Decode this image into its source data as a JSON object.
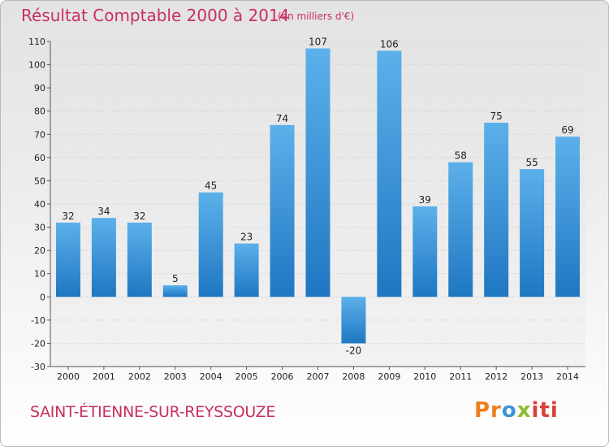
{
  "title": "Résultat Comptable 2000 à 2014",
  "subtitle": "(en milliers d'€)",
  "commune": "SAINT-ÉTIENNE-SUR-REYSSOUZE",
  "logo": {
    "parts": [
      "Pr",
      "o",
      "x",
      "iti"
    ]
  },
  "colors": {
    "title": "#c8305c",
    "bar_light": "#5cb0ea",
    "bar_dark": "#1f77c2",
    "grid": "#d6d6d6"
  },
  "chart_data": {
    "type": "bar",
    "categories": [
      "2000",
      "2001",
      "2002",
      "2003",
      "2004",
      "2005",
      "2006",
      "2007",
      "2008",
      "2009",
      "2010",
      "2011",
      "2012",
      "2013",
      "2014"
    ],
    "values": [
      32,
      34,
      32,
      5,
      45,
      23,
      74,
      107,
      -20,
      106,
      39,
      58,
      75,
      55,
      69
    ],
    "data_labels": [
      "32",
      "34",
      "32",
      "5",
      "45",
      "23",
      "74",
      "107",
      "-20",
      "106",
      "39",
      "58",
      "75",
      "55",
      "69"
    ],
    "y_ticks": [
      "-30",
      "-20",
      "-10",
      "0",
      "10",
      "20",
      "30",
      "40",
      "50",
      "60",
      "70",
      "80",
      "90",
      "100",
      "110"
    ],
    "ylim": [
      -30,
      110
    ],
    "grid": true
  }
}
